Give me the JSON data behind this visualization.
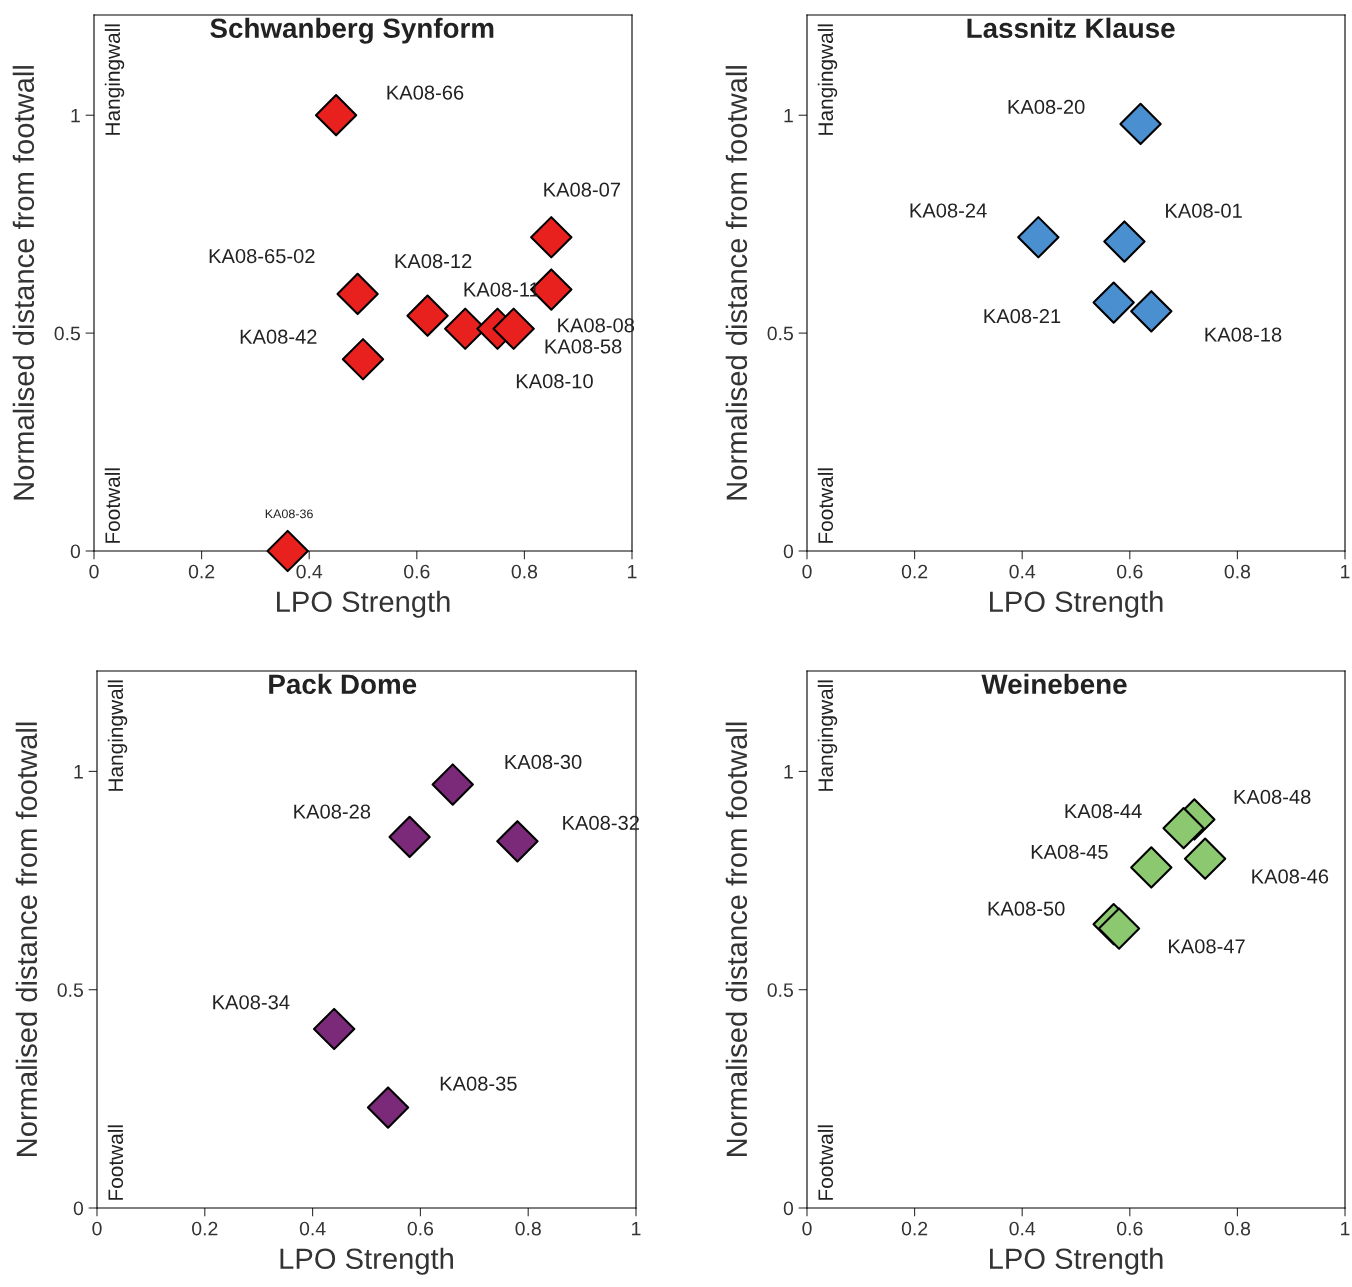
{
  "chart_data": [
    {
      "type": "scatter",
      "title": "Schwanberg Synform",
      "xlabel": "LPO Strength",
      "ylabel": "Normalised distance from footwall",
      "xlim": [
        0,
        1
      ],
      "ylim": [
        0,
        1.23
      ],
      "xticks": [
        0,
        0.2,
        0.4,
        0.6,
        0.8,
        1
      ],
      "yticks": [
        0,
        0.5,
        1
      ],
      "grid": false,
      "marker": "diamond",
      "series": [
        {
          "color": "#e8211f",
          "x": [
            0.45,
            0.85,
            0.85,
            0.49,
            0.62,
            0.69,
            0.75,
            0.78,
            0.5,
            0.36
          ],
          "values": [
            1.0,
            0.72,
            0.6,
            0.59,
            0.54,
            0.51,
            0.51,
            0.51,
            0.44,
            0.0
          ]
        }
      ],
      "annotations": [
        "Hangingwall",
        "Footwall",
        {
          "text": "KA08-66",
          "x": 0.45,
          "y": 1.0
        },
        {
          "text": "KA08-07",
          "x": 0.85,
          "y": 0.72
        },
        {
          "text": "KA08-08",
          "x": 0.85,
          "y": 0.6
        },
        {
          "text": "KA08-65-02",
          "x": 0.49,
          "y": 0.59
        },
        {
          "text": "KA08-12",
          "x": 0.62,
          "y": 0.54
        },
        {
          "text": "KA08-11",
          "x": 0.69,
          "y": 0.51
        },
        {
          "text": "KA08-10",
          "x": 0.75,
          "y": 0.51
        },
        {
          "text": "KA08-58",
          "x": 0.78,
          "y": 0.51
        },
        {
          "text": "KA08-42",
          "x": 0.5,
          "y": 0.44
        },
        {
          "text": "KA08-36",
          "x": 0.36,
          "y": 0.0
        }
      ]
    },
    {
      "type": "scatter",
      "title": "Lassnitz Klause",
      "xlabel": "LPO Strength",
      "ylabel": "Normalised distance from footwall",
      "xlim": [
        0,
        1
      ],
      "ylim": [
        0,
        1.23
      ],
      "xticks": [
        0,
        0.2,
        0.4,
        0.6,
        0.8,
        1
      ],
      "yticks": [
        0,
        0.5,
        1
      ],
      "grid": false,
      "marker": "diamond",
      "series": [
        {
          "color": "#4a8fd0",
          "x": [
            0.62,
            0.43,
            0.59,
            0.57,
            0.64
          ],
          "values": [
            0.98,
            0.72,
            0.71,
            0.57,
            0.55
          ]
        }
      ],
      "annotations": [
        "Hangingwall",
        "Footwall",
        {
          "text": "KA08-20",
          "x": 0.62,
          "y": 0.98
        },
        {
          "text": "KA08-24",
          "x": 0.43,
          "y": 0.72
        },
        {
          "text": "KA08-01",
          "x": 0.59,
          "y": 0.71
        },
        {
          "text": "KA08-21",
          "x": 0.57,
          "y": 0.57
        },
        {
          "text": "KA08-18",
          "x": 0.64,
          "y": 0.55
        }
      ]
    },
    {
      "type": "scatter",
      "title": "Pack Dome",
      "xlabel": "LPO Strength",
      "ylabel": "Normalised distance from footwall",
      "xlim": [
        0,
        1
      ],
      "ylim": [
        0,
        1.23
      ],
      "xticks": [
        0,
        0.2,
        0.4,
        0.6,
        0.8,
        1
      ],
      "yticks": [
        0,
        0.5,
        1
      ],
      "grid": false,
      "marker": "diamond",
      "series": [
        {
          "color": "#7b2a7a",
          "x": [
            0.66,
            0.58,
            0.78,
            0.44,
            0.54
          ],
          "values": [
            0.97,
            0.85,
            0.84,
            0.41,
            0.23
          ]
        }
      ],
      "annotations": [
        "Hangingwall",
        "Footwall",
        {
          "text": "KA08-30",
          "x": 0.66,
          "y": 0.97
        },
        {
          "text": "KA08-28",
          "x": 0.58,
          "y": 0.85
        },
        {
          "text": "KA08-32",
          "x": 0.78,
          "y": 0.84
        },
        {
          "text": "KA08-34",
          "x": 0.44,
          "y": 0.41
        },
        {
          "text": "KA08-35",
          "x": 0.54,
          "y": 0.23
        }
      ]
    },
    {
      "type": "scatter",
      "title": "Weinebene",
      "xlabel": "LPO Strength",
      "ylabel": "Normalised distance from footwall",
      "xlim": [
        0,
        1
      ],
      "ylim": [
        0,
        1.23
      ],
      "xticks": [
        0,
        0.2,
        0.4,
        0.6,
        0.8,
        1
      ],
      "yticks": [
        0,
        0.5,
        1
      ],
      "grid": false,
      "marker": "diamond",
      "series": [
        {
          "color": "#8cc870",
          "x": [
            0.72,
            0.7,
            0.74,
            0.64,
            0.57,
            0.58
          ],
          "values": [
            0.89,
            0.87,
            0.8,
            0.78,
            0.65,
            0.64
          ]
        }
      ],
      "annotations": [
        "Hangingwall",
        "Footwall",
        {
          "text": "KA08-48",
          "x": 0.72,
          "y": 0.89
        },
        {
          "text": "KA08-44",
          "x": 0.7,
          "y": 0.87
        },
        {
          "text": "KA08-46",
          "x": 0.74,
          "y": 0.8
        },
        {
          "text": "KA08-45",
          "x": 0.64,
          "y": 0.78
        },
        {
          "text": "KA08-50",
          "x": 0.57,
          "y": 0.65
        },
        {
          "text": "KA08-47",
          "x": 0.58,
          "y": 0.64
        }
      ]
    }
  ]
}
